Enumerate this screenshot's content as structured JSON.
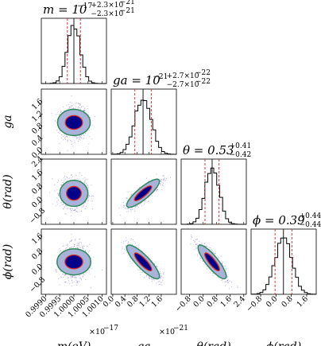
{
  "chart_data": {
    "type": "scatter",
    "plot": "corner",
    "parameters": [
      {
        "key": "m",
        "axis_label": "m(eV)",
        "title_main": "m = 10",
        "title_exp": "−17",
        "title_plus": "+2.3×10",
        "title_plus_exp": "−21",
        "title_minus": "−2.3×10",
        "title_minus_exp": "−21",
        "ticks": [
          "0.9990",
          "0.9995",
          "1.0000",
          "1.0005",
          "1.0010"
        ],
        "offset_label": "×10",
        "offset_exp": "−17",
        "median": 1.0,
        "low": 0.99977,
        "high": 1.00023,
        "range": [
          0.99885,
          1.00115
        ]
      },
      {
        "key": "ga",
        "axis_label": "ga",
        "title_main": "ga = 10",
        "title_exp": "−21",
        "title_plus": "+2.7×10",
        "title_plus_exp": "−22",
        "title_minus": "−2.7×10",
        "title_minus_exp": "−22",
        "ticks": [
          "0.0",
          "0.4",
          "0.8",
          "1.2",
          "1.6"
        ],
        "offset_label": "×10",
        "offset_exp": "−21",
        "median": 1.0,
        "low": 0.73,
        "high": 1.27,
        "range": [
          -0.05,
          2.1
        ]
      },
      {
        "key": "theta",
        "axis_label": "θ(rad)",
        "title_main": "θ = 0.53",
        "title_exp": "",
        "title_plus": "+0.41",
        "title_plus_exp": "",
        "title_minus": "−0.42",
        "title_minus_exp": "",
        "ticks": [
          "−0.8",
          "0.0",
          "0.8",
          "1.6",
          "2.4"
        ],
        "offset_label": "",
        "offset_exp": "",
        "median": 0.53,
        "low": 0.11,
        "high": 0.94,
        "range": [
          -1.3,
          2.55
        ]
      },
      {
        "key": "phi",
        "axis_label": "ϕ(rad)",
        "title_main": "ϕ = 0.39",
        "title_exp": "",
        "title_plus": "+0.44",
        "title_plus_exp": "",
        "title_minus": "−0.44",
        "title_minus_exp": "",
        "ticks": [
          "−0.8",
          "0.0",
          "0.8",
          "1.6"
        ],
        "offset_label": "",
        "offset_exp": "",
        "median": 0.39,
        "low": -0.05,
        "high": 0.83,
        "range": [
          -1.3,
          2.1
        ]
      }
    ],
    "y_ticks": {
      "ga": [
        "0.0",
        "0.4",
        "0.8",
        "1.2",
        "1.6"
      ],
      "theta": [
        "−0.8",
        "0.0",
        "0.8",
        "1.6",
        "2.4"
      ],
      "phi": [
        "−0.8",
        "0.0",
        "0.8",
        "1.6"
      ]
    },
    "correlations": {
      "m-ga": 0.0,
      "m-theta": 0.0,
      "m-phi": 0.0,
      "ga-theta": 0.85,
      "ga-phi": -0.85,
      "theta-phi": -0.85
    },
    "colors": {
      "histogram": "#000000",
      "quantile_lines": "#d62728",
      "median_line": "#000000",
      "points": "#6a5acd",
      "contour_outer_fill": "#a9b3d9",
      "contour_inner_fill": "#00008b",
      "contour_outer_line": "#2e8b57",
      "contour_inner_line": "#d62728"
    }
  }
}
